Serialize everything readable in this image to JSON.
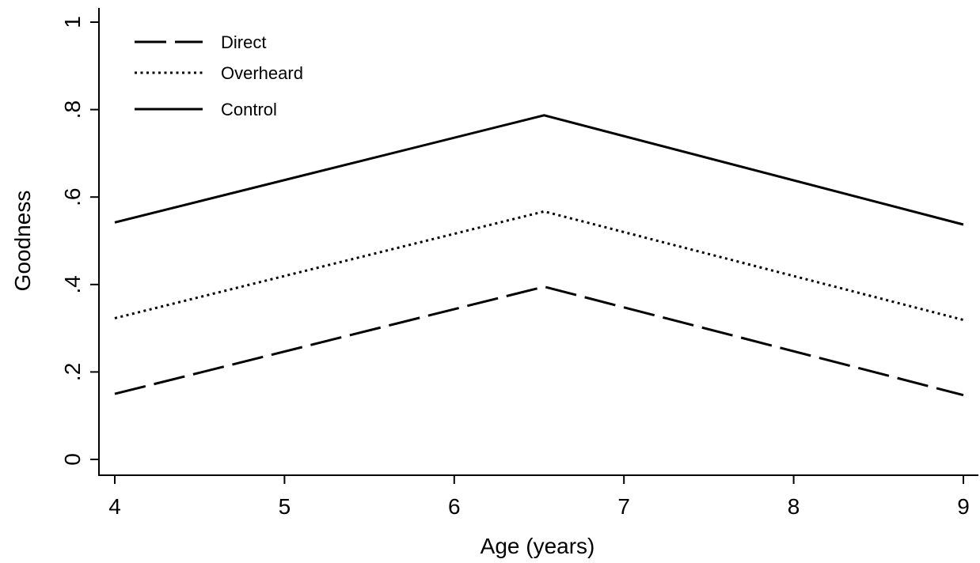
{
  "chart_data": {
    "type": "line",
    "xlabel": "Age (years)",
    "ylabel": "Goodness",
    "xlim": [
      4,
      9
    ],
    "ylim": [
      0,
      1
    ],
    "x_ticks": [
      4,
      5,
      6,
      7,
      8,
      9
    ],
    "x_tick_labels": [
      "4",
      "5",
      "6",
      "7",
      "8",
      "9"
    ],
    "y_ticks": [
      0,
      0.2,
      0.4,
      0.6,
      0.8,
      1
    ],
    "y_tick_labels": [
      "0",
      ".2",
      ".4",
      ".6",
      ".8",
      "1"
    ],
    "x": [
      4,
      6.53,
      9
    ],
    "series": [
      {
        "name": "Direct",
        "values": [
          0.15,
          0.395,
          0.147
        ],
        "style": "dashed"
      },
      {
        "name": "Overheard",
        "values": [
          0.323,
          0.567,
          0.319
        ],
        "style": "dotted"
      },
      {
        "name": "Control",
        "values": [
          0.542,
          0.787,
          0.537
        ],
        "style": "solid"
      }
    ],
    "legend": {
      "placement": "top-left"
    },
    "grid": false,
    "line_color": "#000000"
  }
}
